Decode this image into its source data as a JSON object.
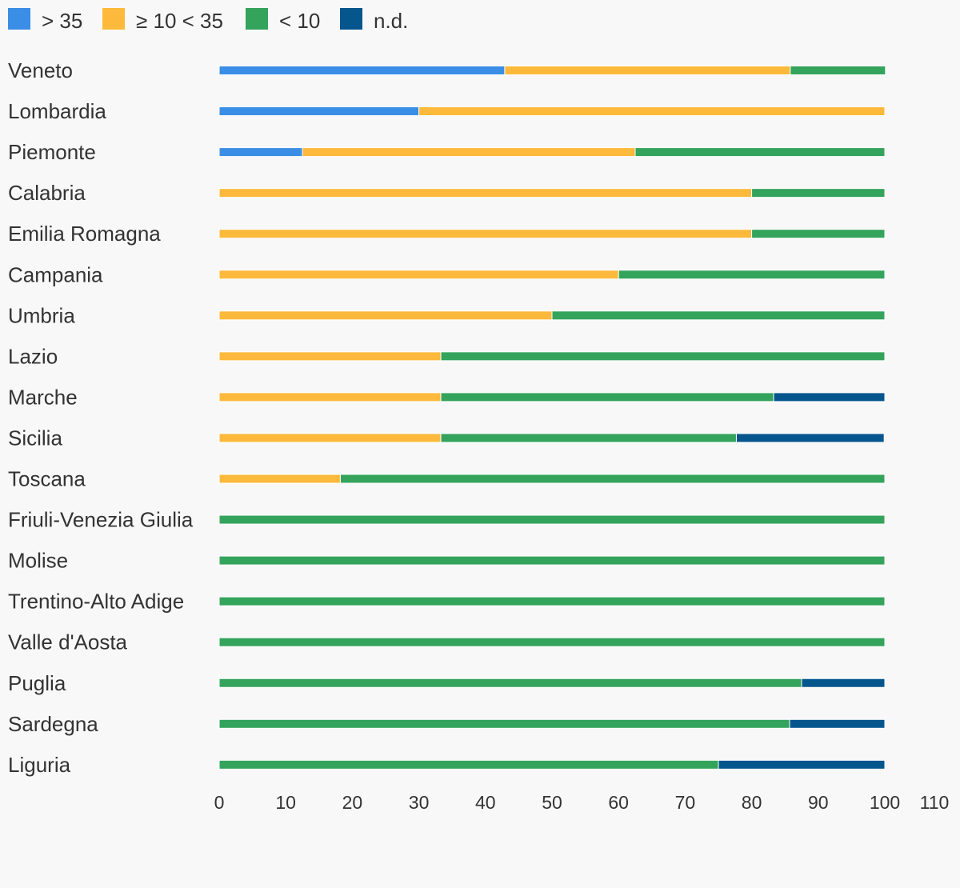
{
  "chart_data": {
    "type": "bar",
    "orientation": "horizontal",
    "stacked": true,
    "legend_position": "top-left",
    "grid": false,
    "xlim": [
      0,
      110
    ],
    "xticks": [
      "0",
      "10",
      "20",
      "30",
      "40",
      "50",
      "60",
      "70",
      "80",
      "90",
      "100",
      "110"
    ],
    "categories": [
      "Veneto",
      "Lombardia",
      "Piemonte",
      "Calabria",
      "Emilia Romagna",
      "Campania",
      "Umbria",
      "Lazio",
      "Marche",
      "Sicilia",
      "Toscana",
      "Friuli-Venezia Giulia",
      "Molise",
      "Trentino-Alto Adige",
      "Valle d'Aosta",
      "Puglia",
      "Sardegna",
      "Liguria"
    ],
    "series": [
      {
        "name": "> 35",
        "color": "#3a8ee6",
        "values": [
          42.9,
          30,
          12.5,
          0,
          0,
          0,
          0,
          0,
          0,
          0,
          0,
          0,
          0,
          0,
          0,
          0,
          0,
          0
        ]
      },
      {
        "name": "≥ 10 < 35",
        "color": "#fdb93b",
        "values": [
          42.9,
          70,
          50,
          80,
          80,
          60,
          50,
          33.3,
          33.3,
          33.3,
          18.2,
          0,
          0,
          0,
          0,
          0,
          0,
          0
        ]
      },
      {
        "name": "< 10",
        "color": "#34a35c",
        "values": [
          14.3,
          0,
          37.5,
          20,
          20,
          40,
          50,
          66.7,
          50,
          44.4,
          81.8,
          100,
          100,
          100,
          100,
          87.5,
          85.7,
          75
        ]
      },
      {
        "name": "n.d.",
        "color": "#06568e",
        "values": [
          0,
          0,
          0,
          0,
          0,
          0,
          0,
          0,
          16.7,
          22.2,
          0,
          0,
          0,
          0,
          0,
          12.5,
          14.3,
          25
        ]
      }
    ]
  }
}
